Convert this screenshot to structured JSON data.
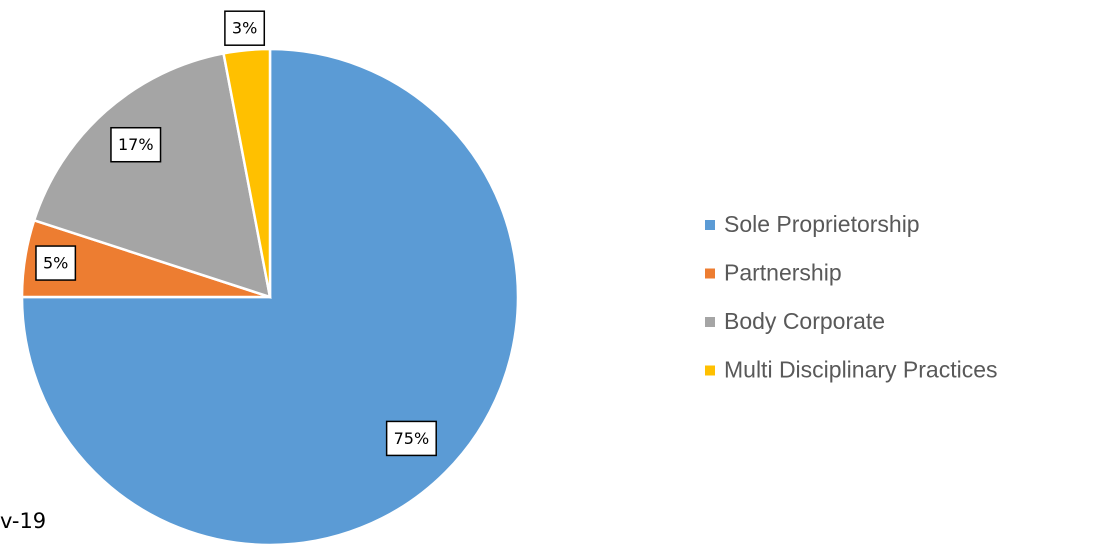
{
  "chart_data": {
    "type": "pie",
    "categories": [
      "Sole Proprietorship",
      "Partnership",
      "Body Corporate",
      "Multi Disciplinary Practices"
    ],
    "values": [
      75,
      5,
      17,
      3
    ],
    "value_labels": [
      "75%",
      "5%",
      "17%",
      "3%"
    ],
    "colors": [
      "#5b9bd5",
      "#ed7d31",
      "#a5a5a5",
      "#ffc000"
    ],
    "legend": "right",
    "footnote": "v-19"
  }
}
